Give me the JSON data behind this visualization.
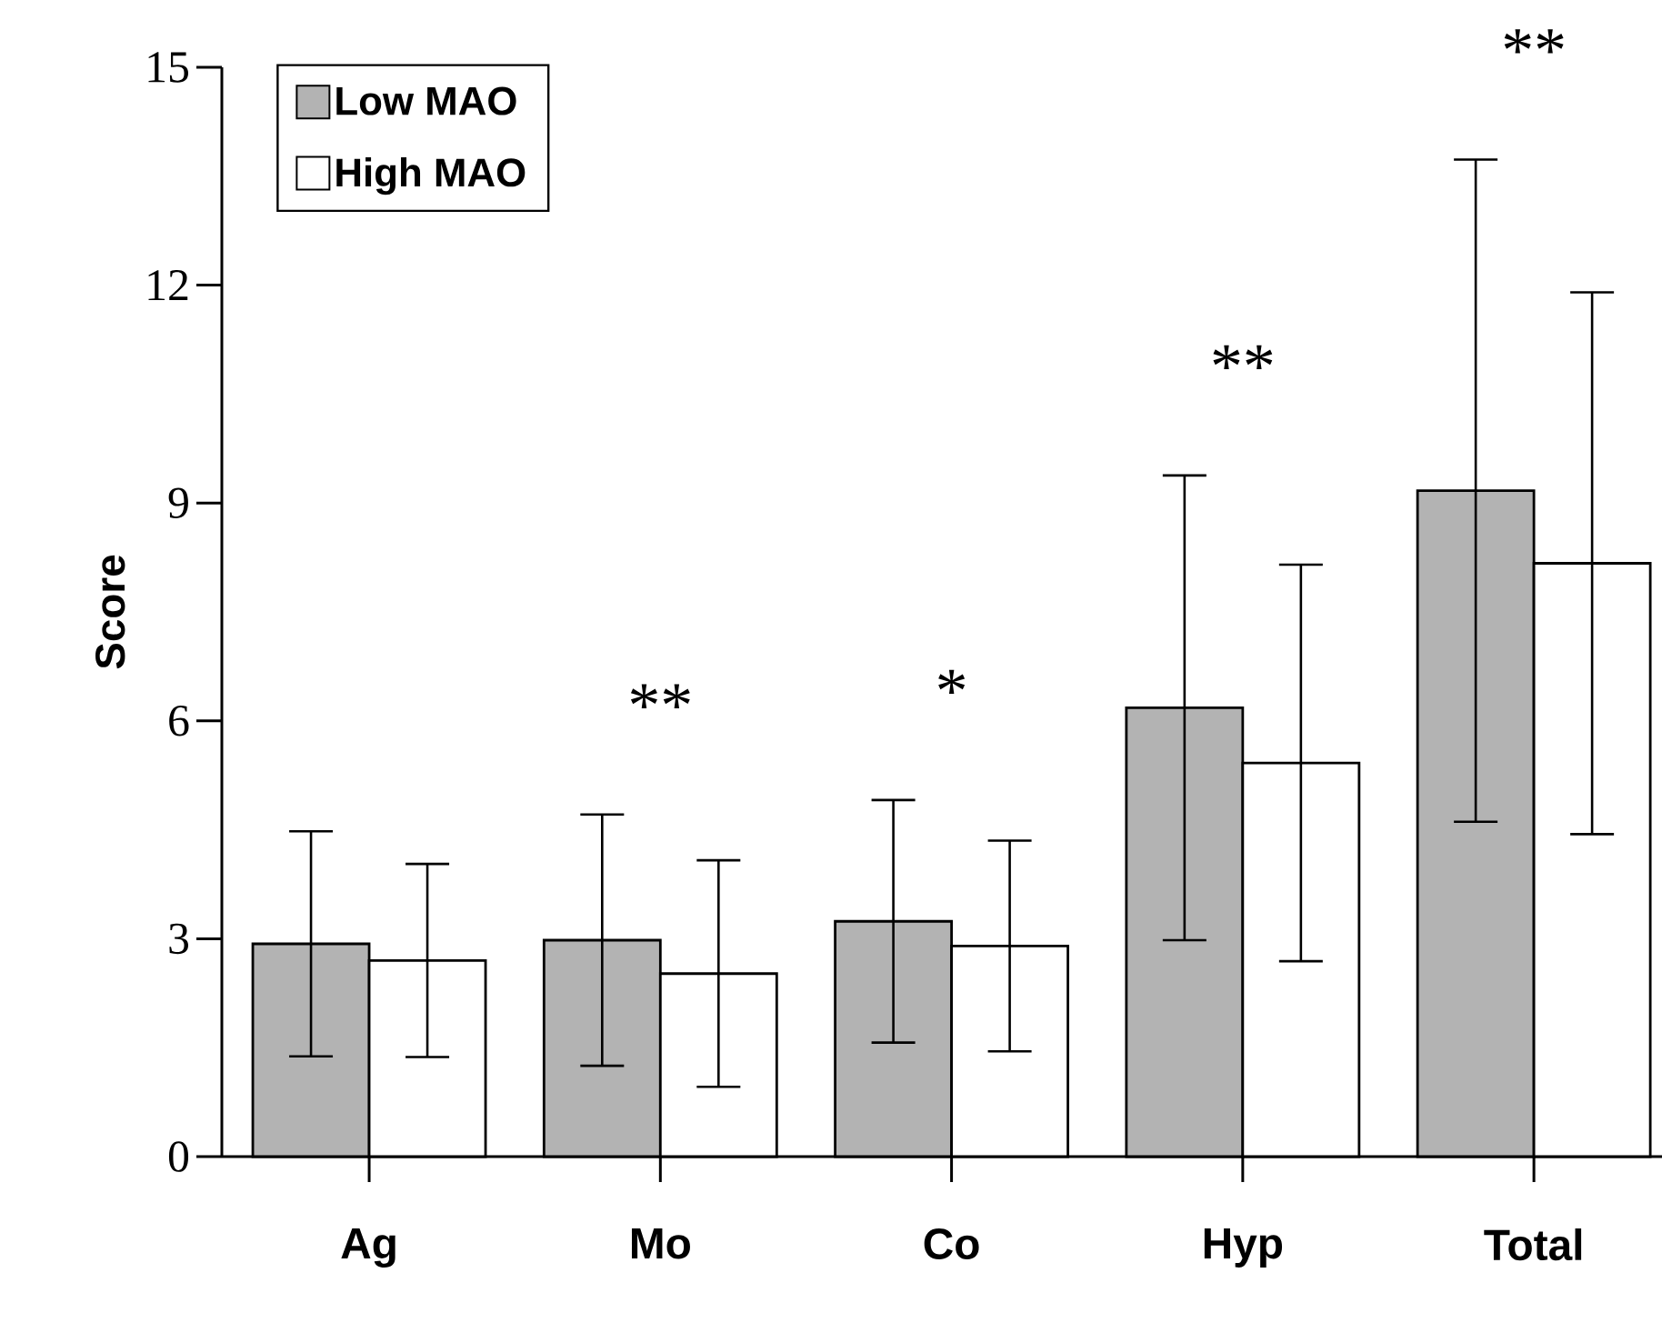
{
  "chart_data": {
    "type": "bar",
    "ylabel": "Score",
    "categories": [
      "Ag",
      "Mo",
      "Co",
      "Hyp",
      "Total"
    ],
    "series": [
      {
        "name": "Low MAO",
        "color": "#b3b3b3",
        "values": [
          2.93,
          2.98,
          3.24,
          6.18,
          9.17
        ],
        "errors": [
          1.55,
          1.73,
          1.67,
          3.2,
          4.56
        ]
      },
      {
        "name": "High MAO",
        "color": "#ffffff",
        "values": [
          2.7,
          2.52,
          2.9,
          5.42,
          8.17
        ],
        "errors": [
          1.33,
          1.56,
          1.45,
          2.73,
          3.73
        ]
      }
    ],
    "ylim": [
      0,
      15
    ],
    "yticks": [
      0,
      3,
      6,
      9,
      12,
      15
    ],
    "legend": "top left",
    "grid": false,
    "annotations": [
      "**",
      "*",
      "**",
      "**"
    ]
  }
}
